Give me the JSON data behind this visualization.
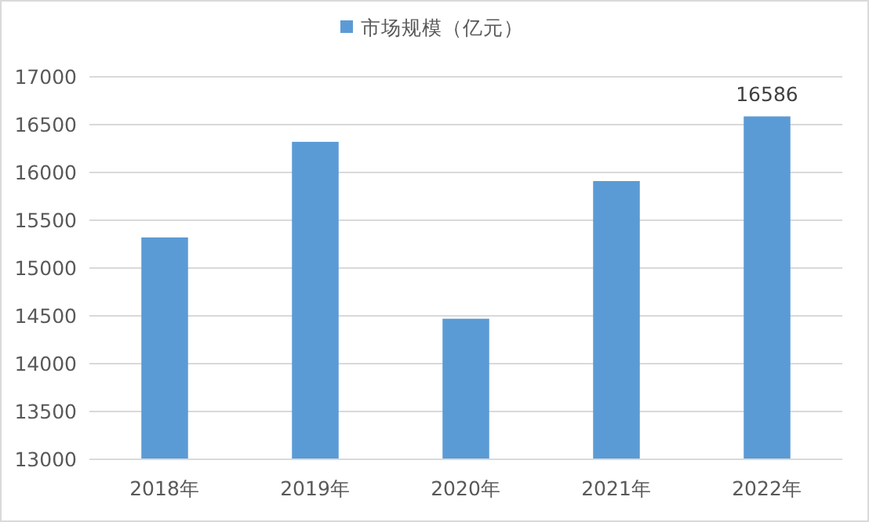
{
  "chart_data": {
    "type": "bar",
    "categories": [
      "2018年",
      "2019年",
      "2020年",
      "2021年",
      "2022年"
    ],
    "series": [
      {
        "name": "市场规模（亿元）",
        "color": "#5b9bd5",
        "values": [
          15320,
          16320,
          14470,
          15910,
          16586
        ],
        "value_labels": [
          null,
          null,
          null,
          null,
          "16586"
        ]
      }
    ],
    "ylim": [
      13000,
      17000
    ],
    "yticks": [
      13000,
      13500,
      14000,
      14500,
      15000,
      15500,
      16000,
      16500,
      17000
    ],
    "grid": "y",
    "legend": "top"
  }
}
